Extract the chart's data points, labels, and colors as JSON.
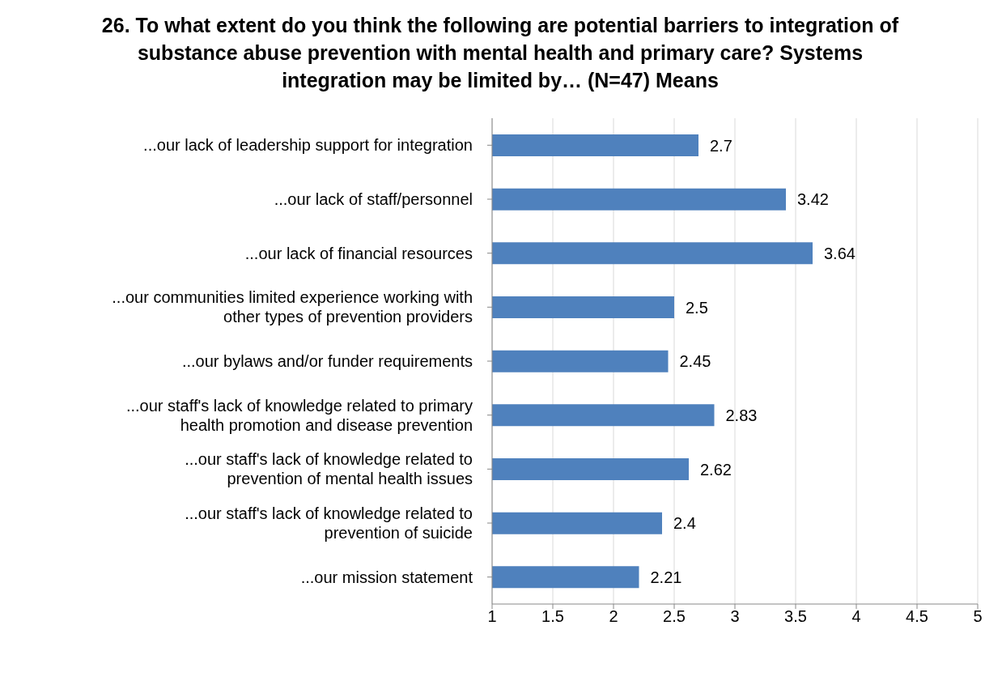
{
  "chart_data": {
    "type": "bar",
    "orientation": "horizontal",
    "title": "26.  To what extent do you think the following are potential barriers to integration of substance abuse prevention with mental health and primary care?   Systems integration may be limited by… (N=47) Means",
    "categories": [
      "...our lack of leadership support for integration",
      "...our lack of staff/personnel",
      "...our lack of financial resources",
      "...our communities limited experience working with other types of prevention providers",
      "...our bylaws and/or funder requirements",
      "...our staff's lack of knowledge related to primary health promotion and disease prevention",
      "...our staff's lack of knowledge related to prevention of mental health issues",
      "...our staff's lack of knowledge related to prevention of suicide",
      "...our mission statement"
    ],
    "values": [
      2.7,
      3.42,
      3.64,
      2.5,
      2.45,
      2.83,
      2.62,
      2.4,
      2.21
    ],
    "color": "#4f81bd",
    "xlim": [
      1,
      5
    ],
    "xticks": [
      1,
      1.5,
      2,
      2.5,
      3,
      3.5,
      4,
      4.5,
      5
    ],
    "grid": "x",
    "data_labels": true,
    "legend": false
  }
}
